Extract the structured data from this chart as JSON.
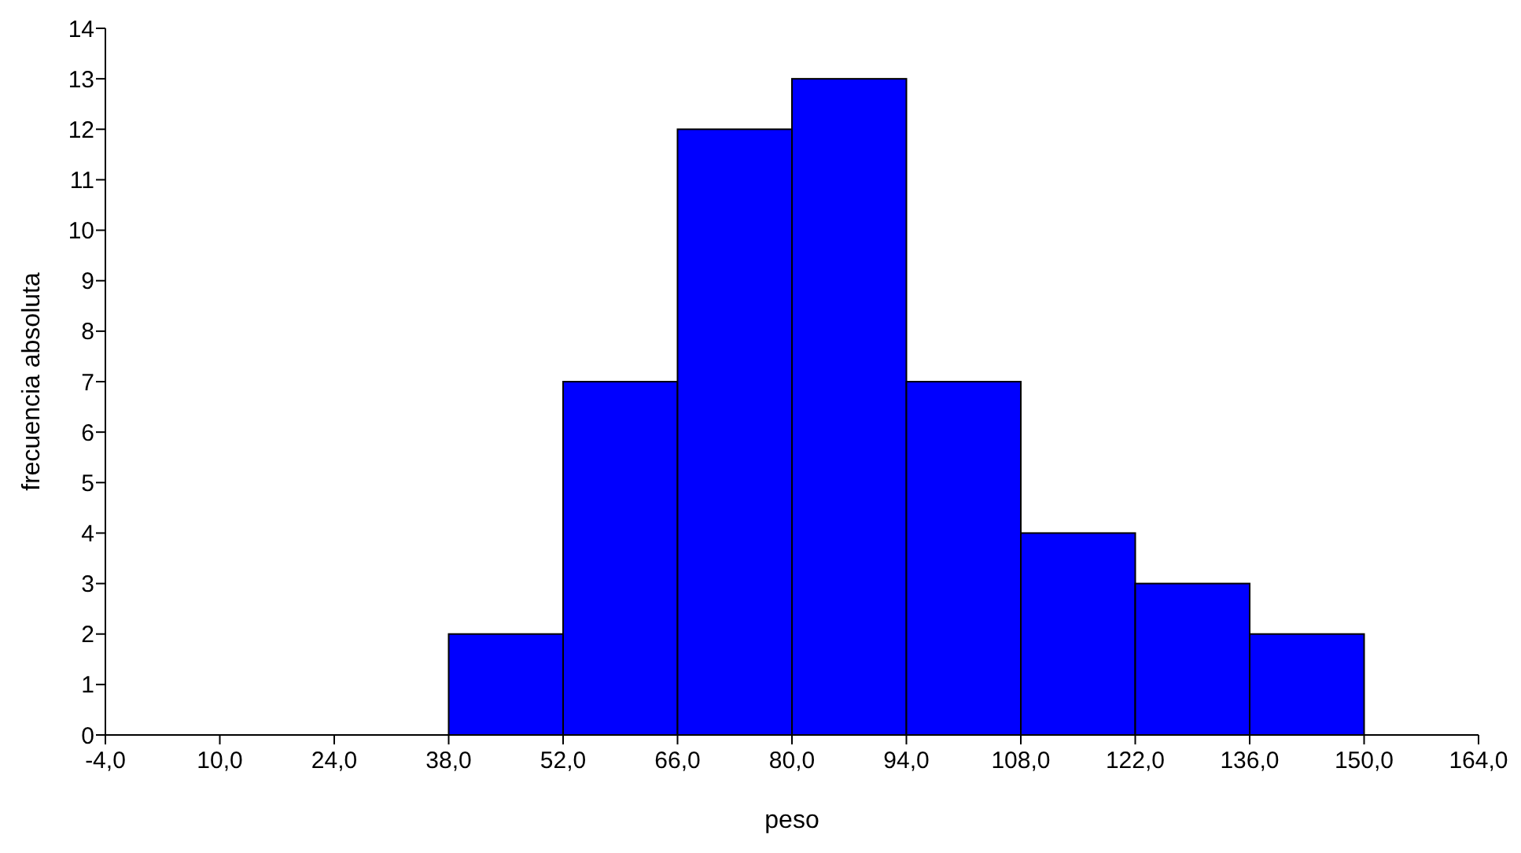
{
  "chart_data": {
    "type": "histogram",
    "xlabel": "peso",
    "ylabel": "frecuencia absoluta",
    "bins": [
      38,
      52,
      66,
      80,
      94,
      108,
      122,
      136,
      150
    ],
    "values": [
      2,
      7,
      12,
      13,
      7,
      4,
      3,
      2
    ],
    "color": "#0000ff",
    "xlim": [
      -4,
      164
    ],
    "xticks": [
      {
        "value": -4,
        "label": "-4,0"
      },
      {
        "value": 10,
        "label": "10,0"
      },
      {
        "value": 24,
        "label": "24,0"
      },
      {
        "value": 38,
        "label": "38,0"
      },
      {
        "value": 52,
        "label": "52,0"
      },
      {
        "value": 66,
        "label": "66,0"
      },
      {
        "value": 80,
        "label": "80,0"
      },
      {
        "value": 94,
        "label": "94,0"
      },
      {
        "value": 108,
        "label": "108,0"
      },
      {
        "value": 122,
        "label": "122,0"
      },
      {
        "value": 136,
        "label": "136,0"
      },
      {
        "value": 150,
        "label": "150,0"
      },
      {
        "value": 164,
        "label": "164,0"
      }
    ],
    "ylim": [
      0,
      14
    ],
    "yticks": [
      0,
      1,
      2,
      3,
      4,
      5,
      6,
      7,
      8,
      9,
      10,
      11,
      12,
      13,
      14
    ],
    "grid": false
  }
}
